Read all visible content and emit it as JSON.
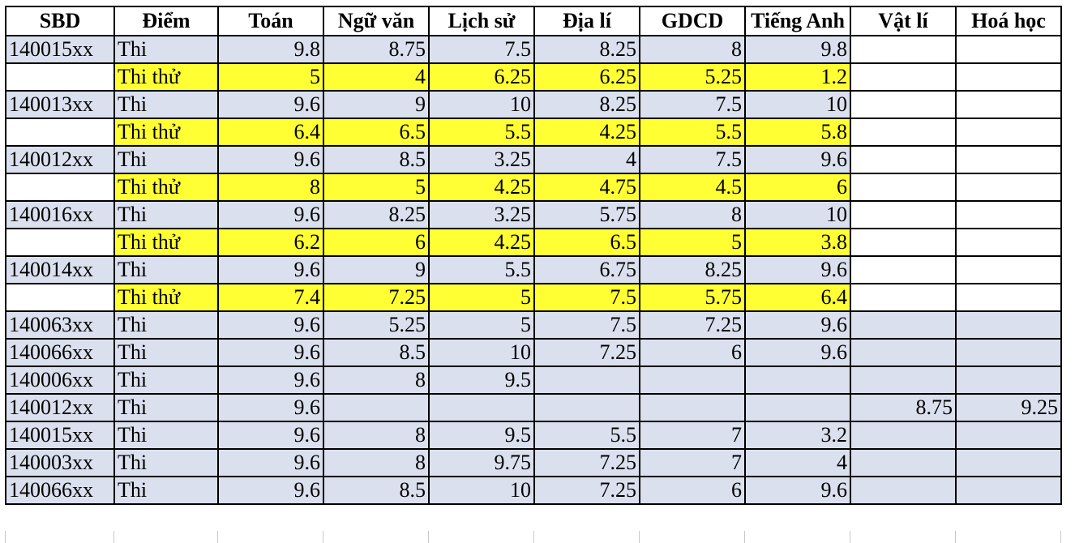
{
  "columns": [
    "SBD",
    "Điểm",
    "Toán",
    "Ngữ văn",
    "Lịch sử",
    "Địa lí",
    "GDCD",
    "Tiếng Anh",
    "Vật lí",
    "Hoá học"
  ],
  "rows": [
    {
      "type": "thi",
      "cells": [
        "140015xx",
        "Thi",
        "9.8",
        "8.75",
        "7.5",
        "8.25",
        "8",
        "9.8",
        "",
        ""
      ]
    },
    {
      "type": "thithu",
      "cells": [
        "",
        "Thi thử",
        "5",
        "4",
        "6.25",
        "6.25",
        "5.25",
        "1.2",
        "",
        ""
      ]
    },
    {
      "type": "thi",
      "cells": [
        "140013xx",
        "Thi",
        "9.6",
        "9",
        "10",
        "8.25",
        "7.5",
        "10",
        "",
        ""
      ]
    },
    {
      "type": "thithu",
      "cells": [
        "",
        "Thi thử",
        "6.4",
        "6.5",
        "5.5",
        "4.25",
        "5.5",
        "5.8",
        "",
        ""
      ]
    },
    {
      "type": "thi",
      "cells": [
        "140012xx",
        "Thi",
        "9.6",
        "8.5",
        "3.25",
        "4",
        "7.5",
        "9.6",
        "",
        ""
      ]
    },
    {
      "type": "thithu",
      "cells": [
        "",
        "Thi thử",
        "8",
        "5",
        "4.25",
        "4.75",
        "4.5",
        "6",
        "",
        ""
      ]
    },
    {
      "type": "thi",
      "cells": [
        "140016xx",
        "Thi",
        "9.6",
        "8.25",
        "3.25",
        "5.75",
        "8",
        "10",
        "",
        ""
      ]
    },
    {
      "type": "thithu",
      "cells": [
        "",
        "Thi thử",
        "6.2",
        "6",
        "4.25",
        "6.5",
        "5",
        "3.8",
        "",
        ""
      ]
    },
    {
      "type": "thi",
      "cells": [
        "140014xx",
        "Thi",
        "9.6",
        "9",
        "5.5",
        "6.75",
        "8.25",
        "9.6",
        "",
        ""
      ]
    },
    {
      "type": "thithu",
      "cells": [
        "",
        "Thi thử",
        "7.4",
        "7.25",
        "5",
        "7.5",
        "5.75",
        "6.4",
        "",
        ""
      ]
    },
    {
      "type": "thi-full",
      "cells": [
        "140063xx",
        "Thi",
        "9.6",
        "5.25",
        "5",
        "7.5",
        "7.25",
        "9.6",
        "",
        ""
      ]
    },
    {
      "type": "thi-full",
      "cells": [
        "140066xx",
        "Thi",
        "9.6",
        "8.5",
        "10",
        "7.25",
        "6",
        "9.6",
        "",
        ""
      ]
    },
    {
      "type": "thi-full",
      "cells": [
        "140006xx",
        "Thi",
        "9.6",
        "8",
        "9.5",
        "",
        "",
        "",
        "",
        ""
      ]
    },
    {
      "type": "thi-full",
      "cells": [
        "140012xx",
        "Thi",
        "9.6",
        "",
        "",
        "",
        "",
        "",
        "8.75",
        "9.25"
      ]
    },
    {
      "type": "thi-full",
      "cells": [
        "140015xx",
        "Thi",
        "9.6",
        "8",
        "9.5",
        "5.5",
        "7",
        "3.2",
        "",
        ""
      ]
    },
    {
      "type": "thi-full",
      "cells": [
        "140003xx",
        "Thi",
        "9.6",
        "8",
        "9.75",
        "7.25",
        "7",
        "4",
        "",
        ""
      ]
    },
    {
      "type": "thi-full",
      "cells": [
        "140066xx",
        "Thi",
        "9.6",
        "8.5",
        "10",
        "7.25",
        "6",
        "9.6",
        "",
        ""
      ]
    }
  ],
  "colors": {
    "thi_row": "#dbe0ee",
    "thithu_row": "#ffff33",
    "border": "#000000",
    "background": "#ffffff"
  }
}
